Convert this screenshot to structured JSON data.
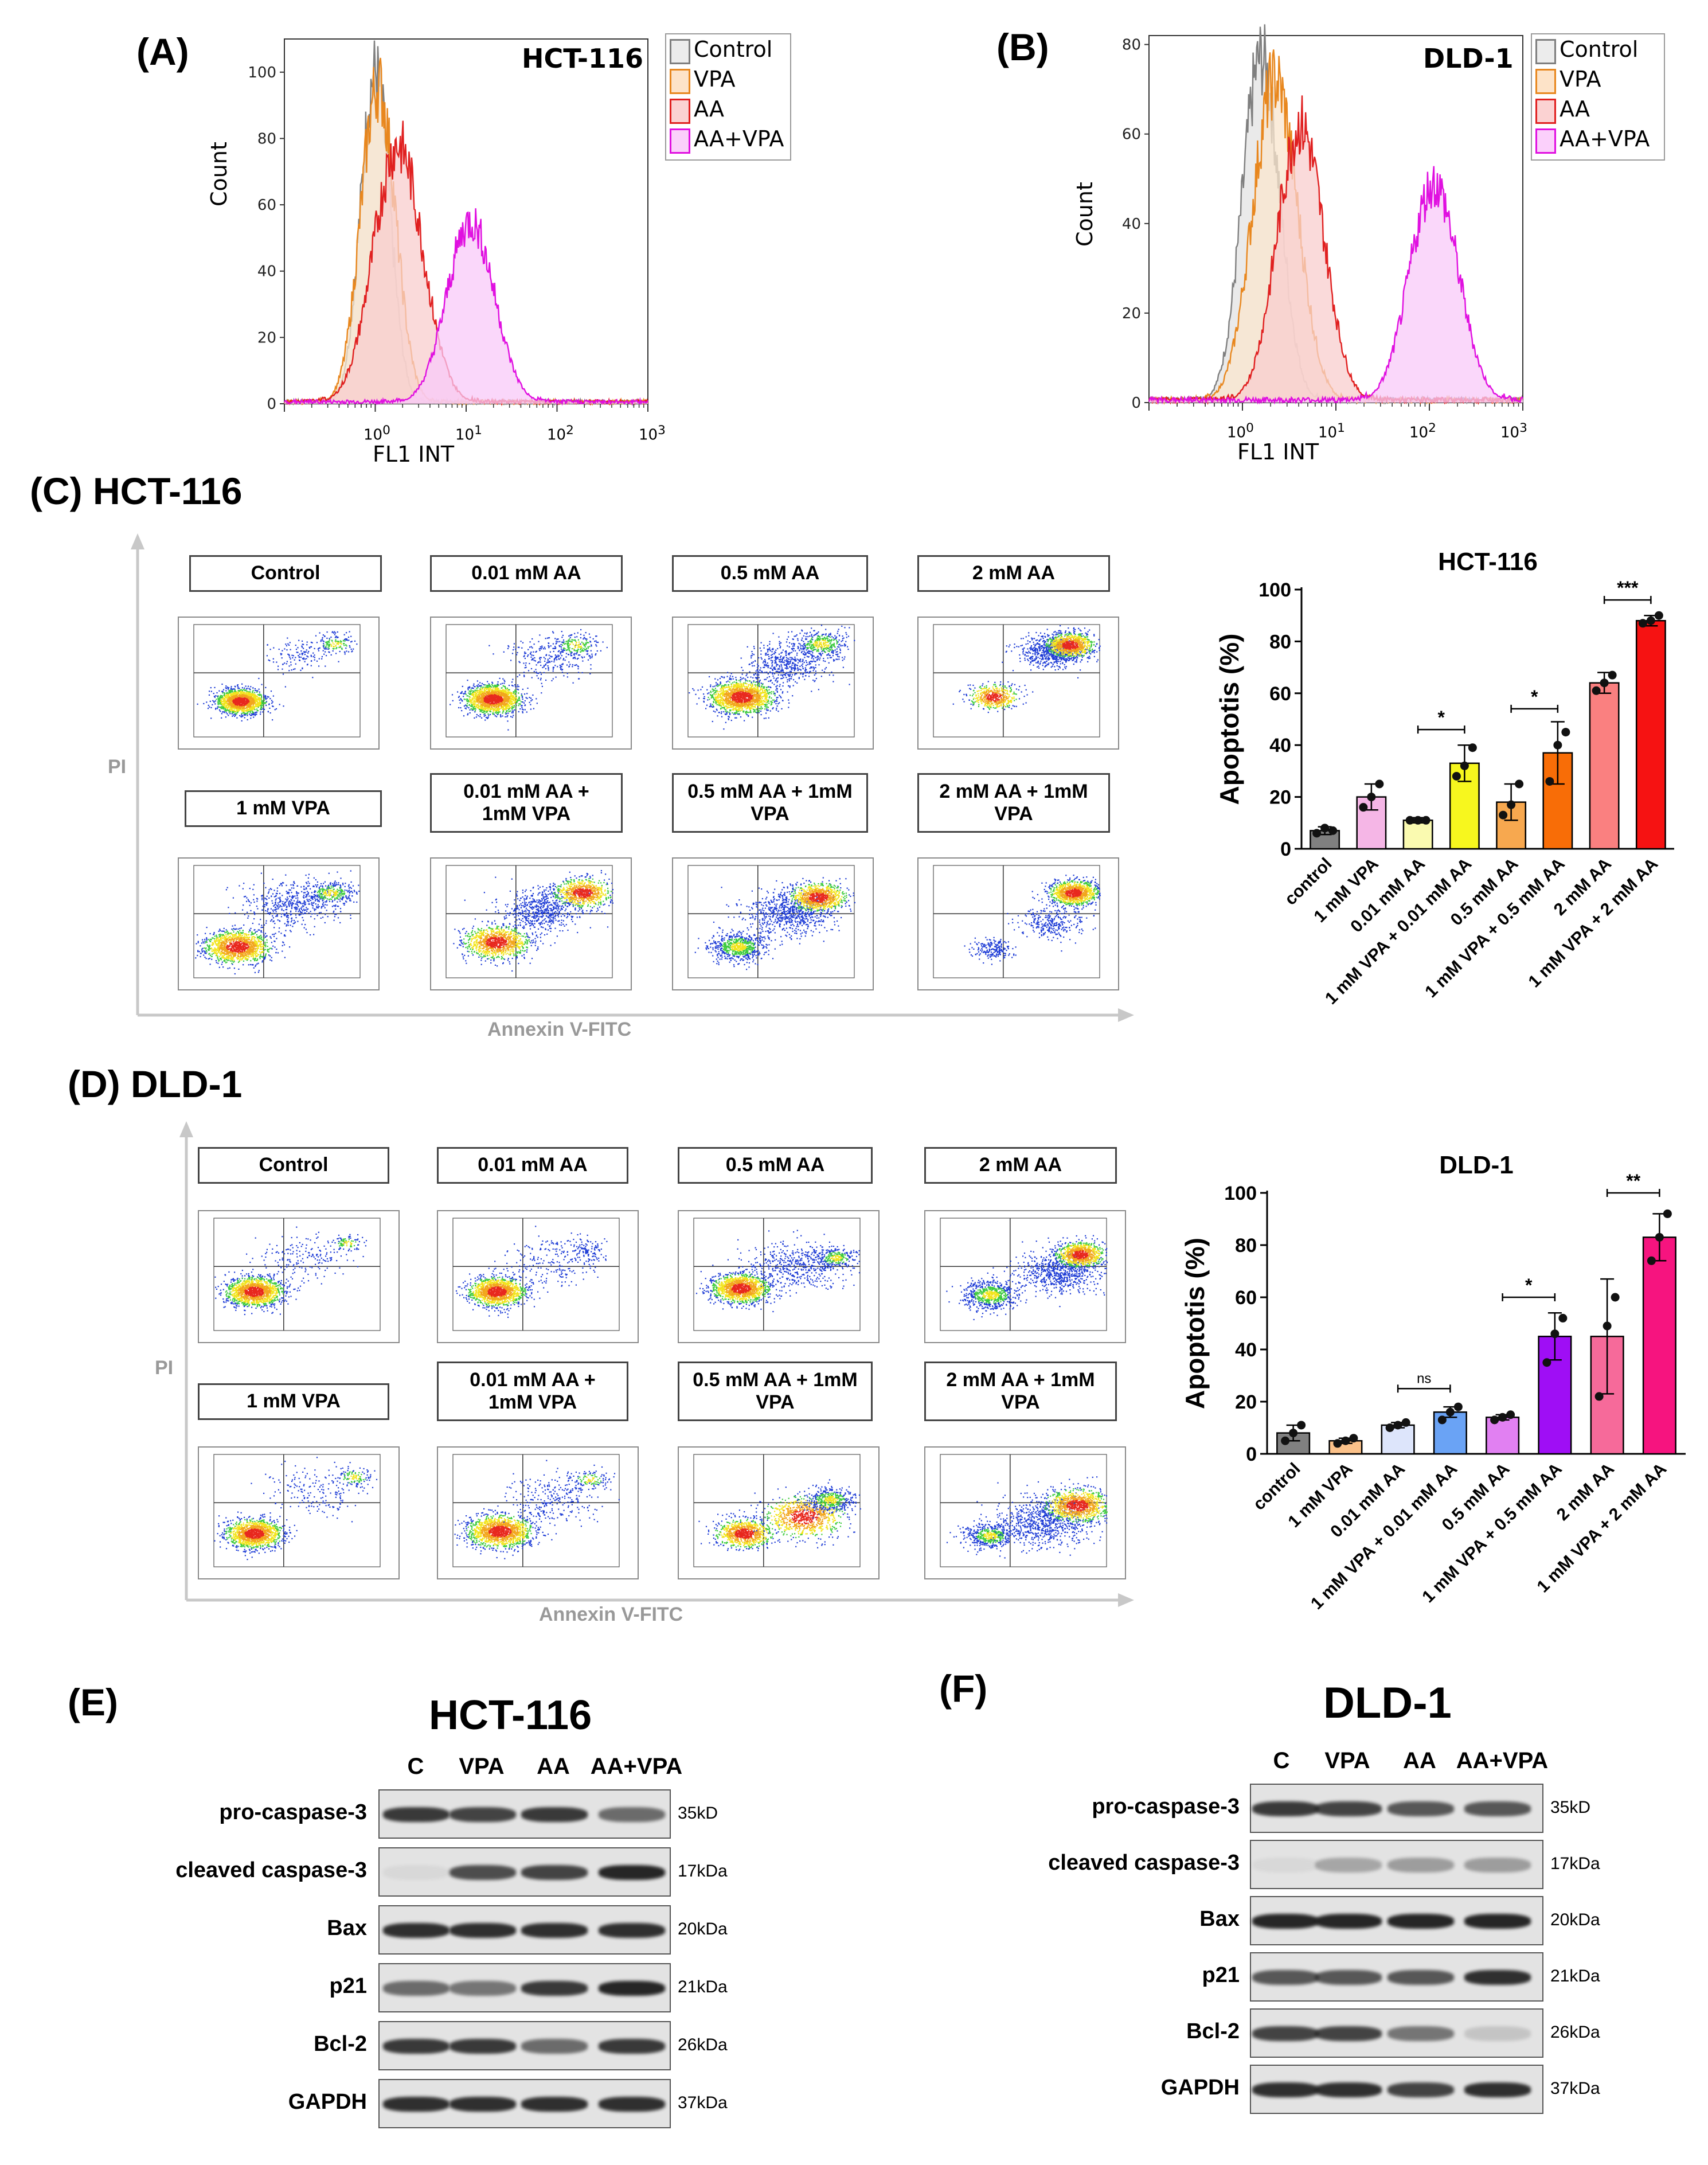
{
  "panels": {
    "A": {
      "label": "(A)",
      "cell": "HCT-116",
      "xlabel": "FL1 INT",
      "ylabel": "Count",
      "yticks": [
        "0",
        "20",
        "40",
        "60",
        "80",
        "100"
      ],
      "xticks": [
        {
          "base": "10",
          "exp": "0"
        },
        {
          "base": "10",
          "exp": "1"
        },
        {
          "base": "10",
          "exp": "2"
        },
        {
          "base": "10",
          "exp": "3"
        }
      ],
      "legend": [
        "Control",
        "VPA",
        "AA",
        "AA+VPA"
      ]
    },
    "B": {
      "label": "(B)",
      "cell": "DLD-1",
      "xlabel": "FL1 INT",
      "ylabel": "Count",
      "yticks": [
        "0",
        "20",
        "40",
        "60",
        "80"
      ],
      "xticks": [
        {
          "base": "10",
          "exp": "0"
        },
        {
          "base": "10",
          "exp": "1"
        },
        {
          "base": "10",
          "exp": "2"
        },
        {
          "base": "10",
          "exp": "3"
        }
      ],
      "legend": [
        "Control",
        "VPA",
        "AA",
        "AA+VPA"
      ]
    },
    "C": {
      "label": "(C) HCT-116",
      "y_axis": "PI",
      "x_axis": "Annexin V-FITC",
      "conditions_top": [
        "Control",
        "0.01 mM AA",
        "0.5 mM AA",
        "2 mM AA"
      ],
      "conditions_bottom": [
        "1 mM VPA",
        "0.01 mM AA +\n1mM VPA",
        "0.5 mM AA + 1mM\nVPA",
        "2 mM AA + 1mM\nVPA"
      ]
    },
    "D": {
      "label": "(D) DLD-1",
      "y_axis": "PI",
      "x_axis": "Annexin V-FITC",
      "conditions_top": [
        "Control",
        "0.01 mM AA",
        "0.5 mM AA",
        "2 mM AA"
      ],
      "conditions_bottom": [
        "1 mM VPA",
        "0.01 mM AA +\n1mM VPA",
        "0.5 mM AA + 1mM\nVPA",
        "2 mM AA + 1mM\nVPA"
      ]
    },
    "E": {
      "label": "(E)",
      "title": "HCT-116",
      "lanes": [
        "C",
        "VPA",
        "AA",
        "AA+VPA"
      ],
      "proteins": [
        "pro-caspase-3",
        "cleaved caspase-3",
        "Bax",
        "p21",
        "Bcl-2",
        "GAPDH"
      ],
      "sizes": [
        "35kD",
        "17kDa",
        "20kDa",
        "21kDa",
        "26kDa",
        "37kDa"
      ],
      "intensities": [
        [
          0.85,
          0.8,
          0.85,
          0.6
        ],
        [
          0.05,
          0.75,
          0.8,
          0.95
        ],
        [
          0.9,
          0.9,
          0.9,
          0.9
        ],
        [
          0.6,
          0.55,
          0.85,
          0.95
        ],
        [
          0.85,
          0.85,
          0.6,
          0.85
        ],
        [
          0.9,
          0.9,
          0.9,
          0.9
        ]
      ]
    },
    "F": {
      "label": "(F)",
      "title": "DLD-1",
      "lanes": [
        "C",
        "VPA",
        "AA",
        "AA+VPA"
      ],
      "proteins": [
        "pro-caspase-3",
        "cleaved caspase-3",
        "Bax",
        "p21",
        "Bcl-2",
        "GAPDH"
      ],
      "sizes": [
        "35kD",
        "17kDa",
        "20kDa",
        "21kDa",
        "26kDa",
        "37kDa"
      ],
      "intensities": [
        [
          0.85,
          0.8,
          0.7,
          0.7
        ],
        [
          0.05,
          0.3,
          0.35,
          0.35
        ],
        [
          0.95,
          0.95,
          0.95,
          0.95
        ],
        [
          0.7,
          0.7,
          0.7,
          0.9
        ],
        [
          0.8,
          0.8,
          0.55,
          0.15
        ],
        [
          0.9,
          0.9,
          0.8,
          0.9
        ]
      ]
    }
  },
  "chart_data": [
    {
      "id": "hist-A",
      "type": "line",
      "title": "HCT-116",
      "xlabel": "FL1 INT",
      "ylabel": "Count",
      "xscale": "log",
      "xlim": [
        0.1,
        1000
      ],
      "ylim": [
        0,
        110
      ],
      "series": [
        {
          "name": "Control",
          "color": "#7f7f7f",
          "peak_log": 0.0,
          "sd": 0.16,
          "height": 100
        },
        {
          "name": "VPA",
          "color": "#e8871e",
          "peak_log": 0.03,
          "sd": 0.19,
          "height": 96
        },
        {
          "name": "AA",
          "color": "#e02020",
          "peak_log": 0.25,
          "sd": 0.27,
          "height": 78
        },
        {
          "name": "AA+VPA",
          "color": "#e010e0",
          "peak_log": 1.05,
          "sd": 0.26,
          "height": 55
        }
      ]
    },
    {
      "id": "hist-B",
      "type": "line",
      "title": "DLD-1",
      "xlabel": "FL1 INT",
      "ylabel": "Count",
      "xscale": "log",
      "xlim": [
        0.1,
        1000
      ],
      "ylim": [
        0,
        82
      ],
      "series": [
        {
          "name": "Control",
          "color": "#7f7f7f",
          "peak_log": 0.2,
          "sd": 0.2,
          "height": 77
        },
        {
          "name": "VPA",
          "color": "#e8871e",
          "peak_log": 0.35,
          "sd": 0.24,
          "height": 72
        },
        {
          "name": "AA",
          "color": "#e02020",
          "peak_log": 0.62,
          "sd": 0.25,
          "height": 62
        },
        {
          "name": "AA+VPA",
          "color": "#e010e0",
          "peak_log": 2.05,
          "sd": 0.26,
          "height": 49
        }
      ]
    },
    {
      "id": "bar-C",
      "type": "bar",
      "title": "HCT-116",
      "ylabel": "Apoptotis (%)",
      "ylim": [
        0,
        100
      ],
      "yticks": [
        "0",
        "20",
        "40",
        "60",
        "80",
        "100"
      ],
      "categories": [
        "control",
        "1 mM VPA",
        "0.01 mM AA",
        "1 mM VPA + 0.01 mM AA",
        "0.5 mM AA",
        "1 mM VPA + 0.5 mM AA",
        "2 mM AA",
        "1 mM VPA + 2 mM AA"
      ],
      "values": [
        7,
        20,
        11,
        33,
        18,
        37,
        64,
        88
      ],
      "errors": [
        1.5,
        5,
        1,
        7,
        7,
        12,
        4,
        2
      ],
      "points": [
        [
          6,
          8,
          7
        ],
        [
          16,
          20,
          25
        ],
        [
          11,
          11,
          11
        ],
        [
          28,
          32,
          39
        ],
        [
          13,
          17,
          25
        ],
        [
          26,
          40,
          45
        ],
        [
          61,
          64,
          67
        ],
        [
          87,
          88,
          90
        ]
      ],
      "colors": [
        "#808080",
        "#f5b6e6",
        "#fafab0",
        "#f7f71e",
        "#f7a84f",
        "#f86d07",
        "#fa8080",
        "#f61212"
      ],
      "significance": [
        {
          "from": 2,
          "to": 3,
          "label": "*",
          "y": 46
        },
        {
          "from": 4,
          "to": 5,
          "label": "*",
          "y": 54
        },
        {
          "from": 6,
          "to": 7,
          "label": "***",
          "y": 96
        }
      ]
    },
    {
      "id": "bar-D",
      "type": "bar",
      "title": "DLD-1",
      "ylabel": "Apoptotis (%)",
      "ylim": [
        0,
        100
      ],
      "yticks": [
        "0",
        "20",
        "40",
        "60",
        "80",
        "100"
      ],
      "categories": [
        "control",
        "1 mM VPA",
        "0.01 mM AA",
        "1 mM VPA + 0.01 mM AA",
        "0.5 mM AA",
        "1 mM VPA + 0.5 mM AA",
        "2 mM AA",
        "1 mM VPA + 2 mM AA"
      ],
      "values": [
        8,
        5,
        11,
        16,
        14,
        45,
        45,
        83
      ],
      "errors": [
        3,
        1,
        1,
        2,
        1,
        9,
        22,
        9
      ],
      "points": [
        [
          5,
          8,
          11
        ],
        [
          4,
          5,
          6
        ],
        [
          10,
          11,
          12
        ],
        [
          13,
          16,
          18
        ],
        [
          13,
          14,
          15
        ],
        [
          35,
          46,
          52
        ],
        [
          22,
          49,
          60
        ],
        [
          74,
          83,
          92
        ]
      ],
      "colors": [
        "#808080",
        "#fcc28a",
        "#dde5fb",
        "#6aa3f5",
        "#e180f2",
        "#9f0ef5",
        "#f66a9a",
        "#f6147f"
      ],
      "significance": [
        {
          "from": 4,
          "to": 5,
          "label": "*",
          "y": 60
        },
        {
          "from": 2,
          "to": 3,
          "label": "ns",
          "y": 25
        },
        {
          "from": 6,
          "to": 7,
          "label": "**",
          "y": 100
        }
      ]
    }
  ]
}
